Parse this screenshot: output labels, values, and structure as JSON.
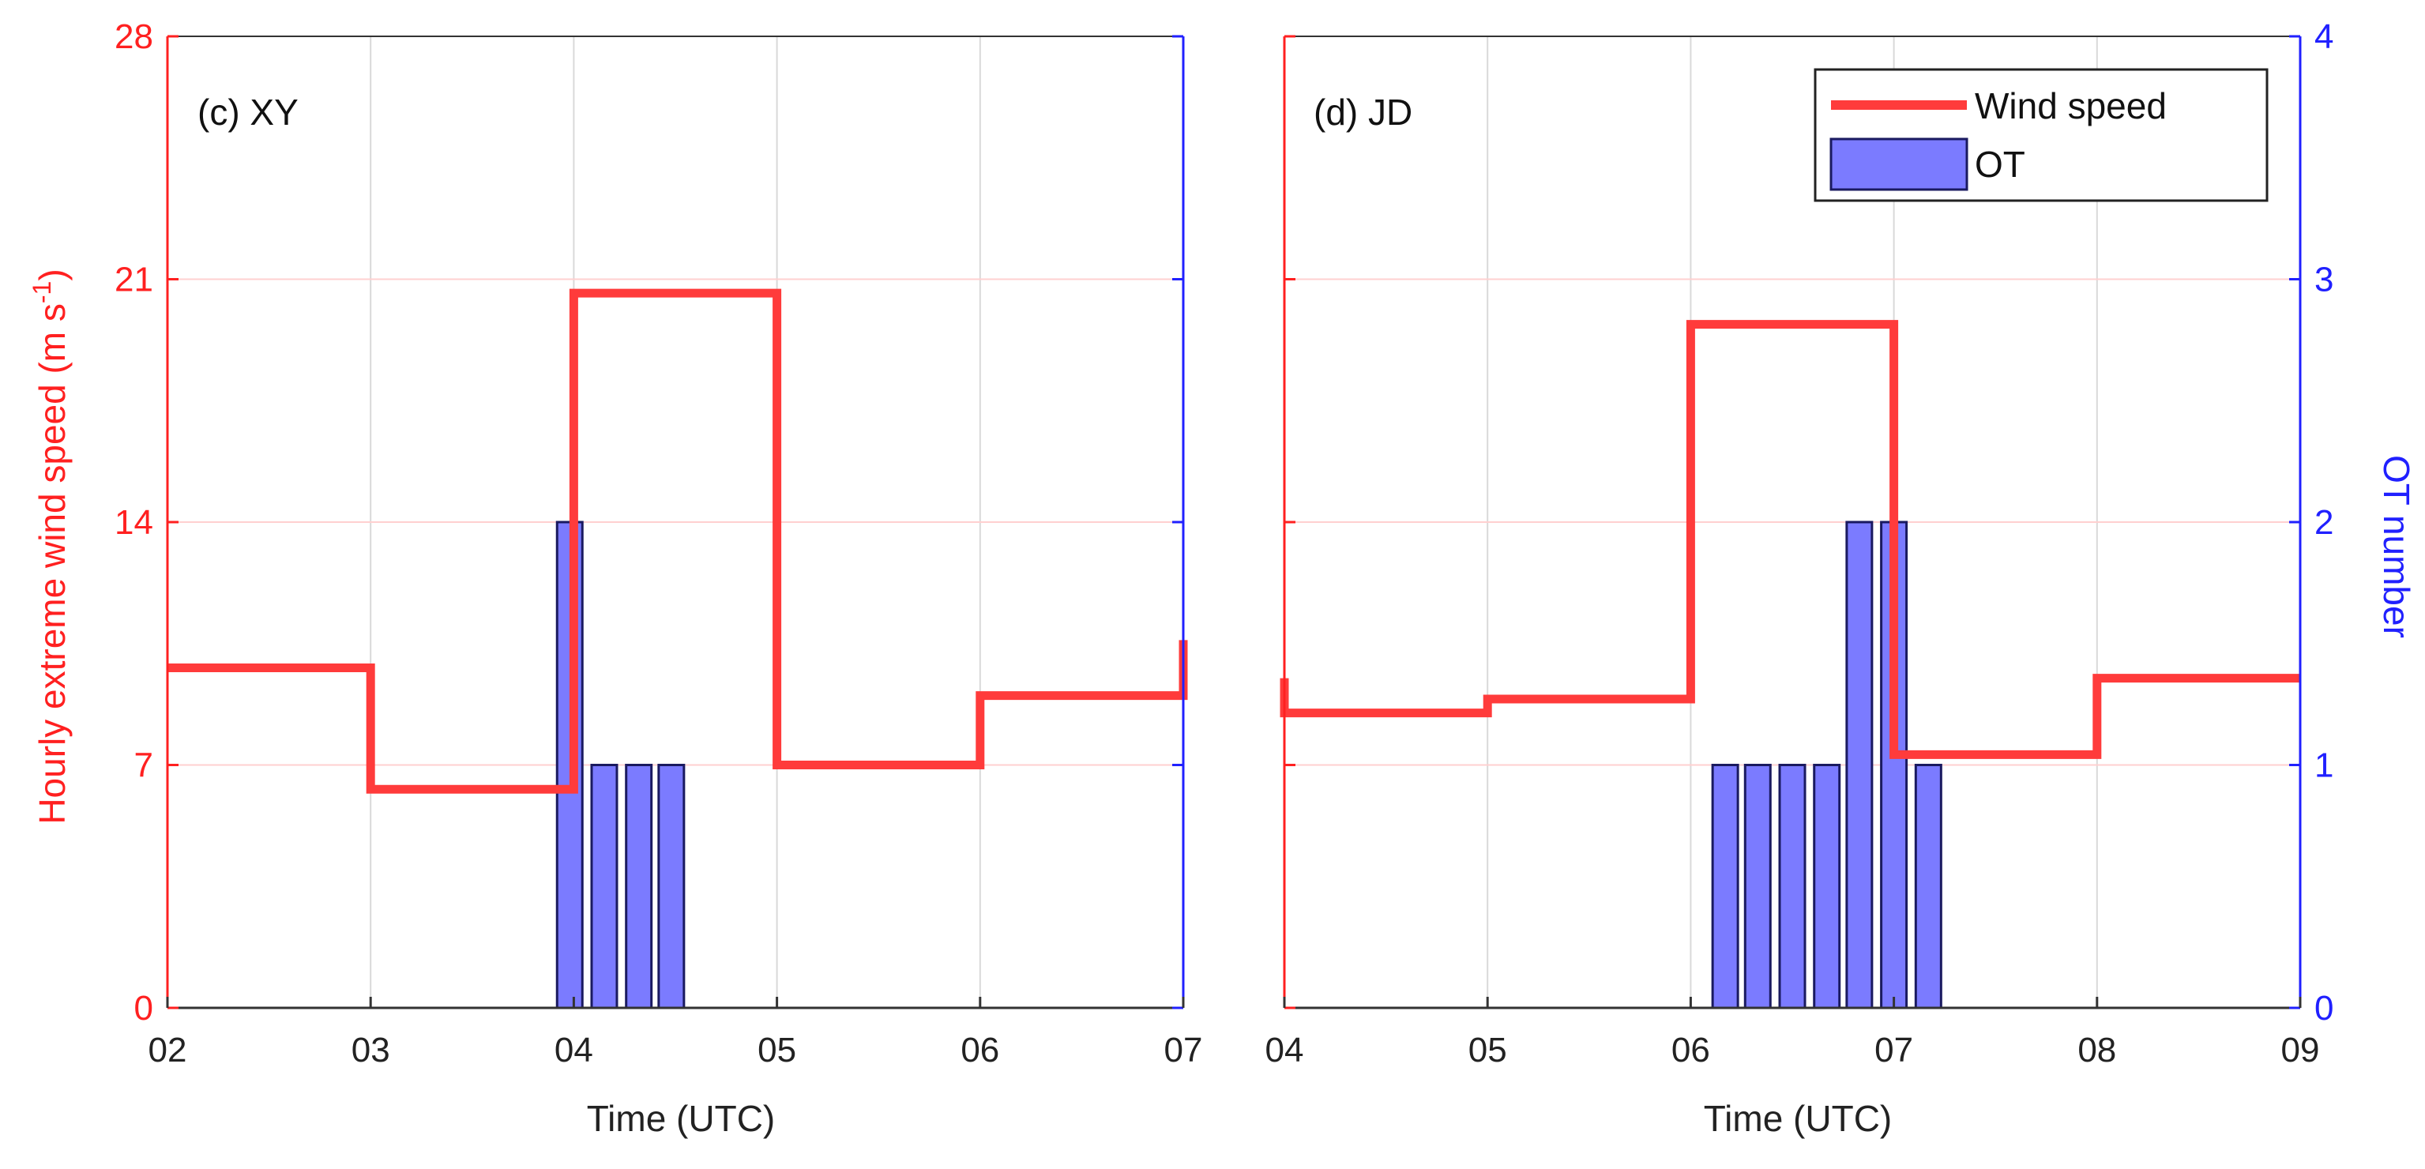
{
  "colors": {
    "wind": "#ff3b3b",
    "ot_fill": "#7b7bff",
    "ot_edge": "#1a1a60",
    "left_axis": "#ff2020",
    "right_axis": "#2020ff",
    "frame": "#333333",
    "grid_v": "#d9d9d9",
    "grid_h": "#ffd0d0"
  },
  "chart_data": [
    {
      "type": "step+bar",
      "title": "(c) XY",
      "xlabel": "Time (UTC)",
      "ylabel": "Hourly extreme wind speed (m s⁻¹)",
      "ylabel_main": "Hourly extreme wind speed (m s",
      "ylabel_sup": "-1",
      "ylabel_tail": ")",
      "x_ticks": [
        2,
        3,
        4,
        5,
        6,
        7
      ],
      "x_tick_labels": [
        "02",
        "03",
        "04",
        "05",
        "06",
        "07"
      ],
      "xlim": [
        2,
        7
      ],
      "ylim": [
        0,
        28
      ],
      "y_ticks": [
        0,
        7,
        14,
        21,
        28
      ],
      "y_tick_labels": [
        "0",
        "7",
        "14",
        "21",
        "28"
      ],
      "y2lim": [
        0,
        4
      ],
      "grid": true,
      "wind_speed": {
        "name": "Wind speed",
        "steps": [
          {
            "x0": 2,
            "x1": 3,
            "y": 9.8
          },
          {
            "x0": 3,
            "x1": 4,
            "y": 6.3
          },
          {
            "x0": 4,
            "x1": 5,
            "y": 20.6
          },
          {
            "x0": 5,
            "x1": 6,
            "y": 7.0
          },
          {
            "x0": 6,
            "x1": 7,
            "y": 9.0
          }
        ],
        "end_value": 10.6
      },
      "ot": {
        "name": "OT",
        "bars": [
          {
            "x": 3.98,
            "value": 2
          },
          {
            "x": 4.15,
            "value": 1
          },
          {
            "x": 4.32,
            "value": 1
          },
          {
            "x": 4.48,
            "value": 1
          }
        ]
      }
    },
    {
      "type": "step+bar",
      "title": "(d) JD",
      "xlabel": "Time (UTC)",
      "ylabel": "OT number",
      "x_ticks": [
        4,
        5,
        6,
        7,
        8,
        9
      ],
      "x_tick_labels": [
        "04",
        "05",
        "06",
        "07",
        "08",
        "09"
      ],
      "xlim": [
        4,
        9
      ],
      "ylim": [
        0,
        28
      ],
      "y2lim": [
        0,
        4
      ],
      "y2_ticks": [
        0,
        1,
        2,
        3,
        4
      ],
      "y2_tick_labels": [
        "0",
        "1",
        "2",
        "3",
        "4"
      ],
      "grid": true,
      "legend": {
        "position": "top-right",
        "entries": [
          "Wind speed",
          "OT"
        ]
      },
      "wind_speed": {
        "name": "Wind speed",
        "start_value": 9.5,
        "steps": [
          {
            "x0": 4,
            "x1": 5,
            "y": 8.5
          },
          {
            "x0": 5,
            "x1": 6,
            "y": 8.9
          },
          {
            "x0": 6,
            "x1": 7,
            "y": 19.7
          },
          {
            "x0": 7,
            "x1": 8,
            "y": 7.3
          },
          {
            "x0": 8,
            "x1": 9,
            "y": 9.5
          }
        ],
        "end_value": 9.5
      },
      "ot": {
        "name": "OT",
        "bars": [
          {
            "x": 6.17,
            "value": 1
          },
          {
            "x": 6.33,
            "value": 1
          },
          {
            "x": 6.5,
            "value": 1
          },
          {
            "x": 6.67,
            "value": 1
          },
          {
            "x": 6.83,
            "value": 2
          },
          {
            "x": 7.0,
            "value": 2
          },
          {
            "x": 7.17,
            "value": 1
          }
        ]
      }
    }
  ]
}
